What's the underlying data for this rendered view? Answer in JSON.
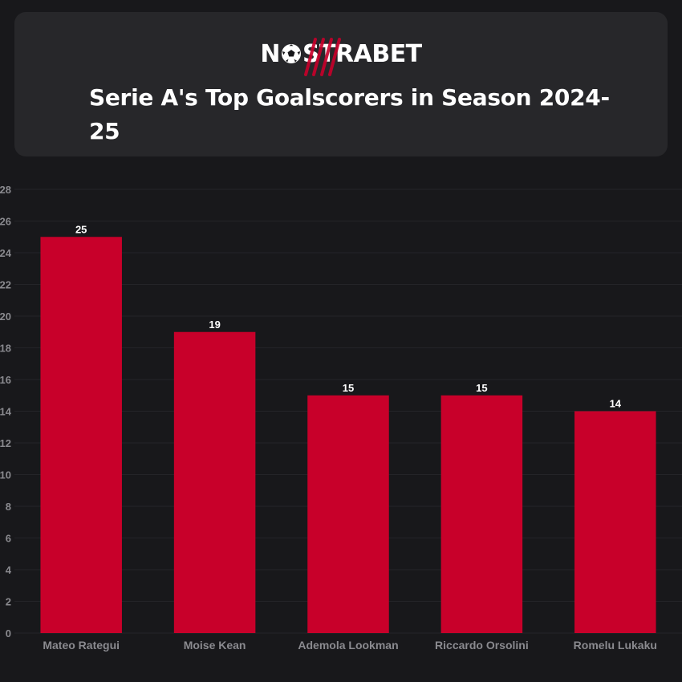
{
  "brand": {
    "logo_text": "NOSTRABET",
    "logo_prefix": "N",
    "logo_suffix": "STRABET",
    "accent": "#c8002a"
  },
  "colors": {
    "background": "#18181b",
    "card": "#27272a",
    "bar": "#c8002a",
    "axis_text": "#8a8a8f",
    "value_text": "#ffffff"
  },
  "chart_data": {
    "type": "bar",
    "title": "Serie A's Top Goalscorers in Season 2024-25",
    "xlabel": "",
    "ylabel": "",
    "categories": [
      "Mateo Rategui",
      "Moise Kean",
      "Ademola Lookman",
      "Riccardo Orsolini",
      "Romelu Lukaku"
    ],
    "values": [
      25,
      19,
      15,
      15,
      14
    ],
    "value_labels": [
      "25",
      "19",
      "15",
      "15",
      "14"
    ],
    "ylim": [
      0,
      28
    ],
    "yticks": [
      0,
      2,
      4,
      6,
      8,
      10,
      12,
      14,
      16,
      18,
      20,
      22,
      24,
      26,
      28
    ],
    "ytick_labels": [
      "0",
      "2",
      "4",
      "6",
      "8",
      "10",
      "12",
      "14",
      "16",
      "18",
      "20",
      "22",
      "24",
      "26",
      "28"
    ],
    "grid": true,
    "legend": "none"
  }
}
